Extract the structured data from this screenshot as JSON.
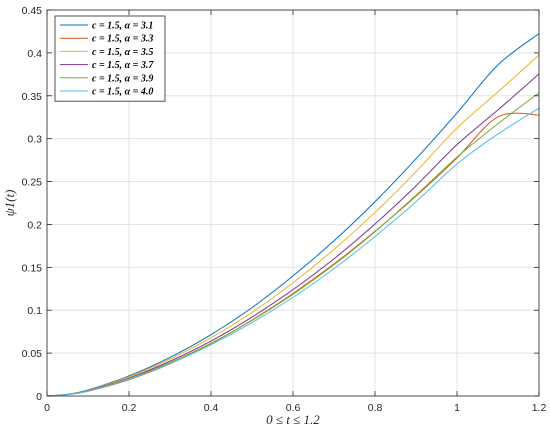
{
  "chart_data": {
    "type": "line",
    "xlabel": "0 ≤ t ≤ 1.2",
    "ylabel": "ψ1(t)",
    "xlim": [
      0,
      1.2
    ],
    "ylim": [
      0,
      0.45
    ],
    "xticks": [
      0,
      0.2,
      0.4,
      0.6,
      0.8,
      1,
      1.2
    ],
    "xtick_labels": [
      "0",
      "0.2",
      "0.4",
      "0.6",
      "0.8",
      "1",
      "1.2"
    ],
    "yticks": [
      0,
      0.05,
      0.1,
      0.15,
      0.2,
      0.25,
      0.3,
      0.35,
      0.4,
      0.45
    ],
    "ytick_labels": [
      "0",
      "0.05",
      "0.1",
      "0.15",
      "0.2",
      "0.25",
      "0.3",
      "0.35",
      "0.4",
      "0.45"
    ],
    "grid": true,
    "legend_position": "top-left",
    "x": [
      0,
      0.05,
      0.1,
      0.2,
      0.3,
      0.4,
      0.5,
      0.6,
      0.7,
      0.8,
      0.9,
      1.0,
      1.1,
      1.2
    ],
    "series": [
      {
        "name": "c = 1.5, α = 3.1",
        "color": "#0072BD",
        "values": [
          0,
          0.002,
          0.007,
          0.0235,
          0.045,
          0.0715,
          0.103,
          0.14,
          0.181,
          0.2265,
          0.2765,
          0.33,
          0.386,
          0.4225
        ]
      },
      {
        "name": "c = 1.5, α = 3.3",
        "color": "#D95319",
        "values": [
          0,
          0.0016,
          0.0055,
          0.019,
          0.0375,
          0.061,
          0.0885,
          0.1195,
          0.154,
          0.192,
          0.233,
          0.2775,
          0.3255,
          0.3275
        ]
      },
      {
        "name": "c = 1.5, α = 3.5",
        "color": "#EDB120",
        "values": [
          0,
          0.002,
          0.0066,
          0.0225,
          0.043,
          0.068,
          0.0975,
          0.132,
          0.171,
          0.214,
          0.2615,
          0.3125,
          0.3545,
          0.3975
        ]
      },
      {
        "name": "c = 1.5, α = 3.7",
        "color": "#7E2F8E",
        "values": [
          0,
          0.0019,
          0.0062,
          0.021,
          0.0405,
          0.064,
          0.092,
          0.124,
          0.16,
          0.2005,
          0.245,
          0.293,
          0.3335,
          0.3755
        ]
      },
      {
        "name": "c = 1.5, α = 3.9",
        "color": "#77AC30",
        "values": [
          0,
          0.0018,
          0.0059,
          0.0203,
          0.0388,
          0.0615,
          0.088,
          0.1185,
          0.153,
          0.1915,
          0.234,
          0.2785,
          0.3175,
          0.3535
        ]
      },
      {
        "name": "c = 1.5, α = 4.0",
        "color": "#4DBEEE",
        "values": [
          0,
          0.0017,
          0.0057,
          0.0197,
          0.0378,
          0.0598,
          0.0855,
          0.115,
          0.1485,
          0.186,
          0.2265,
          0.2705,
          0.3055,
          0.3355
        ]
      }
    ]
  }
}
